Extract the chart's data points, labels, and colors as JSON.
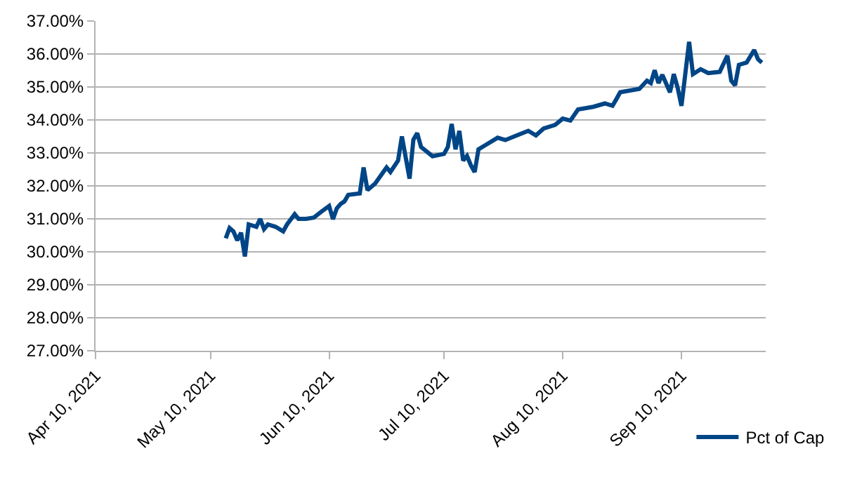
{
  "chart_data": {
    "type": "line",
    "x": [
      "2021-05-14",
      "2021-05-15",
      "2021-05-16",
      "2021-05-17",
      "2021-05-18",
      "2021-05-19",
      "2021-05-20",
      "2021-05-22",
      "2021-05-23",
      "2021-05-24",
      "2021-05-25",
      "2021-05-27",
      "2021-05-29",
      "2021-05-30",
      "2021-06-01",
      "2021-06-02",
      "2021-06-04",
      "2021-06-06",
      "2021-06-08",
      "2021-06-10",
      "2021-06-11",
      "2021-06-12",
      "2021-06-13",
      "2021-06-14",
      "2021-06-15",
      "2021-06-18",
      "2021-06-19",
      "2021-06-20",
      "2021-06-22",
      "2021-06-25",
      "2021-06-26",
      "2021-06-28",
      "2021-06-29",
      "2021-07-01",
      "2021-07-02",
      "2021-07-03",
      "2021-07-04",
      "2021-07-07",
      "2021-07-10",
      "2021-07-11",
      "2021-07-12",
      "2021-07-13",
      "2021-07-14",
      "2021-07-15",
      "2021-07-16",
      "2021-07-17",
      "2021-07-18",
      "2021-07-19",
      "2021-07-21",
      "2021-07-24",
      "2021-07-26",
      "2021-07-29",
      "2021-08-01",
      "2021-08-03",
      "2021-08-05",
      "2021-08-08",
      "2021-08-10",
      "2021-08-12",
      "2021-08-14",
      "2021-08-18",
      "2021-08-21",
      "2021-08-23",
      "2021-08-24",
      "2021-08-25",
      "2021-08-30",
      "2021-09-01",
      "2021-09-02",
      "2021-09-03",
      "2021-09-04",
      "2021-09-05",
      "2021-09-07",
      "2021-09-08",
      "2021-09-09",
      "2021-09-10",
      "2021-09-11",
      "2021-09-12",
      "2021-09-13",
      "2021-09-15",
      "2021-09-17",
      "2021-09-20",
      "2021-09-22",
      "2021-09-23",
      "2021-09-24",
      "2021-09-25",
      "2021-09-27",
      "2021-09-29",
      "2021-09-30",
      "2021-10-01"
    ],
    "series": [
      {
        "name": "Pct of Cap",
        "color": "#004586",
        "values": [
          30.41,
          30.72,
          30.62,
          30.35,
          30.58,
          29.86,
          30.83,
          30.76,
          31.0,
          30.69,
          30.83,
          30.76,
          30.62,
          30.83,
          31.14,
          31.0,
          31.0,
          31.04,
          31.22,
          31.39,
          30.99,
          31.32,
          31.45,
          31.53,
          31.73,
          31.77,
          32.56,
          31.87,
          32.07,
          32.56,
          32.42,
          32.77,
          33.5,
          32.22,
          33.4,
          33.6,
          33.18,
          32.9,
          32.97,
          33.18,
          33.88,
          33.11,
          33.67,
          32.77,
          32.91,
          32.63,
          32.42,
          33.11,
          33.25,
          33.46,
          33.39,
          33.53,
          33.67,
          33.53,
          33.74,
          33.85,
          34.04,
          33.98,
          34.32,
          34.4,
          34.5,
          34.43,
          34.63,
          34.84,
          34.94,
          35.19,
          35.12,
          35.51,
          35.12,
          35.37,
          34.84,
          35.39,
          34.98,
          34.43,
          35.39,
          36.37,
          35.39,
          35.54,
          35.42,
          35.46,
          35.95,
          35.19,
          35.05,
          35.67,
          35.74,
          36.12,
          35.84,
          35.74
        ]
      }
    ],
    "xlim": [
      "2021-04-10",
      "2021-10-02"
    ],
    "xticks": [
      {
        "value": "2021-04-10",
        "label": "Apr 10, 2021"
      },
      {
        "value": "2021-05-10",
        "label": "May 10, 2021"
      },
      {
        "value": "2021-06-10",
        "label": "Jun 10, 2021"
      },
      {
        "value": "2021-07-10",
        "label": "Jul 10, 2021"
      },
      {
        "value": "2021-08-10",
        "label": "Aug 10, 2021"
      },
      {
        "value": "2021-09-10",
        "label": "Sep 10, 2021"
      }
    ],
    "ylim": [
      27,
      37
    ],
    "yticks": [
      {
        "value": 27,
        "label": "27.00%"
      },
      {
        "value": 28,
        "label": "28.00%"
      },
      {
        "value": 29,
        "label": "29.00%"
      },
      {
        "value": 30,
        "label": "30.00%"
      },
      {
        "value": 31,
        "label": "31.00%"
      },
      {
        "value": 32,
        "label": "32.00%"
      },
      {
        "value": 33,
        "label": "33.00%"
      },
      {
        "value": 34,
        "label": "34.00%"
      },
      {
        "value": 35,
        "label": "35.00%"
      },
      {
        "value": 36,
        "label": "36.00%"
      },
      {
        "value": 37,
        "label": "37.00%"
      }
    ],
    "grid": "y",
    "legend": "bottom right",
    "marker": "none",
    "line_style": "solid"
  }
}
